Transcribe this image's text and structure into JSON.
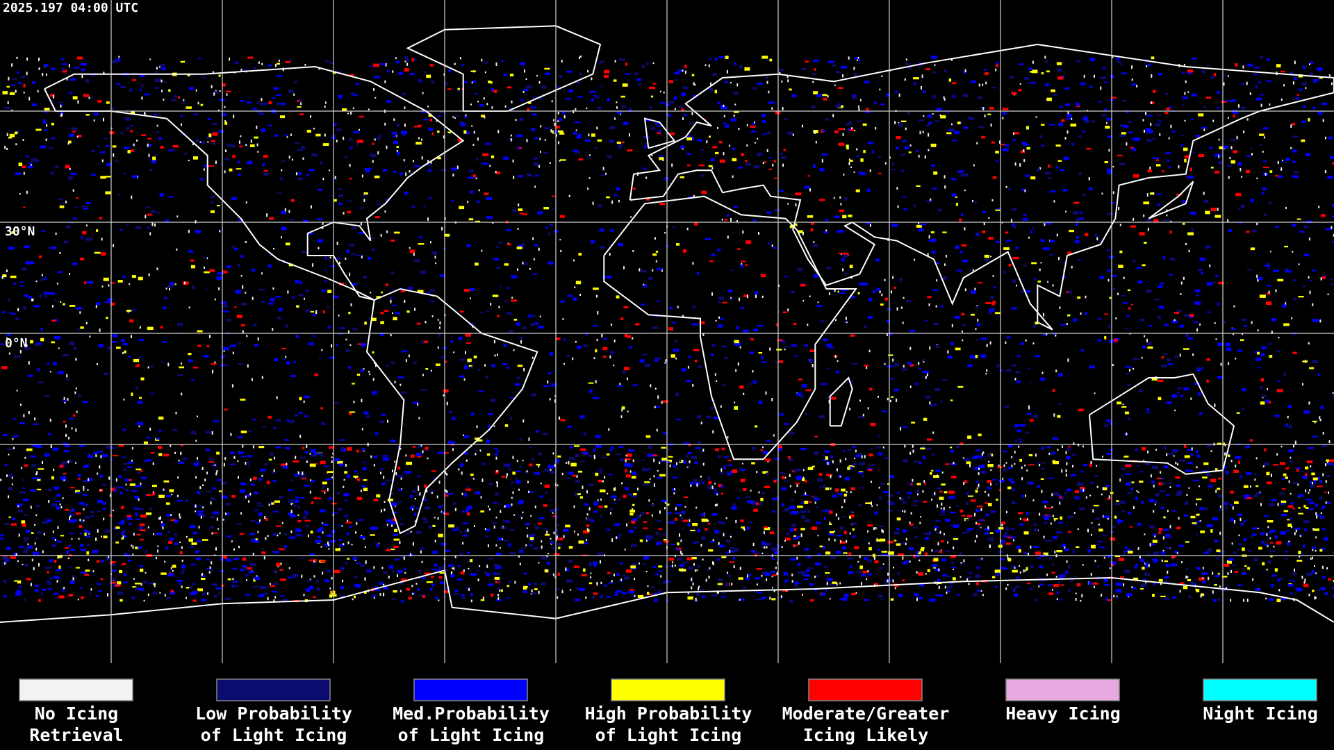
{
  "header": {
    "timestamp": "2025.197 04:00 UTC"
  },
  "map": {
    "lat_labels": [
      "30°N",
      "0°N"
    ]
  },
  "legend": [
    {
      "color": "#f2f2f2",
      "label_lines": [
        "No Icing",
        "Retrieval"
      ]
    },
    {
      "color": "#0b0b70",
      "label_lines": [
        "Low Probability",
        "of Light Icing"
      ]
    },
    {
      "color": "#0000ff",
      "label_lines": [
        "Med.Probability",
        "of Light Icing"
      ]
    },
    {
      "color": "#ffff00",
      "label_lines": [
        "High Probability",
        "of Light Icing"
      ]
    },
    {
      "color": "#ff0000",
      "label_lines": [
        "Moderate/Greater",
        "Icing Likely"
      ]
    },
    {
      "color": "#e8a8e2",
      "label_lines": [
        "Heavy Icing"
      ]
    },
    {
      "color": "#00ffff",
      "label_lines": [
        "Night Icing"
      ]
    }
  ]
}
